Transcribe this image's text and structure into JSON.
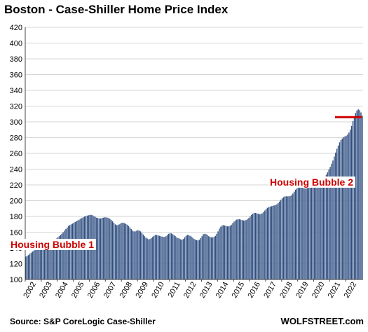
{
  "chart_data": {
    "type": "bar",
    "title": "Boston - Case-Shiller Home Price Index",
    "xlabel": "",
    "ylabel": "",
    "ylim": [
      100,
      420
    ],
    "yticks": [
      100,
      120,
      140,
      160,
      180,
      200,
      220,
      240,
      260,
      280,
      300,
      320,
      340,
      360,
      380,
      400,
      420
    ],
    "xticks": [
      "2002",
      "2003",
      "2004",
      "2005",
      "2006",
      "2007",
      "2008",
      "2009",
      "2010",
      "2011",
      "2012",
      "2013",
      "2014",
      "2015",
      "2016",
      "2017",
      "2018",
      "2019",
      "2020",
      "2021",
      "2022"
    ],
    "grid": true,
    "legend": "none",
    "x_start": "2002-01",
    "frequency": "monthly",
    "values": [
      129.0,
      130.0,
      131.0,
      132.5,
      134.0,
      135.5,
      136.5,
      137.5,
      138.5,
      139.5,
      140.5,
      141.0,
      141.5,
      142.0,
      142.5,
      143.5,
      145.0,
      146.0,
      147.0,
      148.0,
      149.0,
      150.0,
      151.0,
      152.0,
      153.5,
      155.0,
      156.5,
      158.0,
      160.0,
      162.0,
      164.0,
      166.0,
      168.0,
      169.0,
      170.0,
      171.0,
      172.0,
      173.0,
      174.0,
      175.0,
      176.0,
      177.0,
      178.0,
      179.0,
      180.0,
      180.5,
      181.0,
      181.5,
      182.0,
      182.0,
      181.5,
      180.5,
      179.5,
      178.5,
      178.0,
      177.5,
      177.5,
      178.0,
      178.5,
      179.0,
      179.0,
      178.5,
      178.0,
      177.0,
      175.5,
      174.0,
      172.0,
      170.0,
      169.0,
      169.0,
      170.0,
      171.0,
      172.0,
      172.0,
      171.5,
      170.5,
      169.5,
      168.0,
      166.0,
      164.0,
      162.0,
      161.0,
      161.0,
      162.0,
      162.5,
      162.0,
      161.0,
      159.0,
      157.0,
      155.0,
      153.0,
      152.0,
      151.0,
      151.5,
      152.5,
      154.0,
      155.5,
      156.5,
      156.5,
      156.0,
      155.5,
      155.0,
      154.5,
      154.0,
      154.0,
      155.0,
      156.5,
      158.0,
      159.0,
      158.5,
      157.5,
      156.5,
      155.0,
      153.5,
      152.5,
      152.0,
      151.0,
      150.5,
      151.5,
      153.5,
      155.5,
      156.5,
      156.5,
      155.5,
      154.5,
      153.0,
      151.5,
      150.5,
      150.0,
      149.5,
      150.5,
      152.5,
      155.0,
      157.5,
      158.0,
      157.5,
      156.5,
      155.0,
      154.0,
      153.5,
      153.5,
      154.0,
      155.5,
      158.0,
      161.0,
      164.5,
      167.0,
      168.5,
      169.0,
      168.5,
      168.0,
      167.5,
      167.5,
      168.0,
      169.5,
      171.5,
      173.5,
      175.0,
      176.0,
      176.5,
      176.5,
      176.0,
      175.5,
      175.0,
      175.0,
      175.5,
      176.5,
      178.0,
      180.0,
      182.0,
      183.5,
      184.5,
      184.5,
      184.0,
      183.5,
      183.0,
      183.0,
      184.0,
      185.5,
      187.5,
      189.5,
      191.0,
      192.0,
      192.5,
      193.0,
      193.5,
      194.0,
      194.5,
      195.5,
      197.0,
      199.0,
      201.0,
      203.0,
      204.5,
      205.5,
      205.5,
      205.5,
      205.5,
      206.0,
      207.0,
      209.0,
      211.5,
      214.0,
      215.5,
      216.5,
      217.0,
      217.0,
      216.5,
      216.0,
      215.5,
      215.5,
      216.0,
      217.0,
      218.5,
      220.0,
      221.5,
      222.0,
      222.5,
      222.5,
      222.5,
      223.0,
      224.0,
      226.0,
      228.0,
      230.0,
      233.0,
      236.0,
      239.5,
      243.0,
      247.0,
      251.0,
      256.0,
      261.0,
      266.0,
      270.0,
      274.0,
      277.0,
      279.0,
      280.5,
      281.5,
      282.5,
      284.0,
      286.5,
      290.0,
      295.0,
      301.0,
      307.0,
      311.5,
      314.5,
      316.0,
      315.0,
      312.0,
      308.0
    ],
    "annotations": [
      {
        "text": "Housing Bubble 1",
        "color": "#cc0000"
      },
      {
        "text": "Housing Bubble 2",
        "color": "#cc0000"
      }
    ],
    "reference_line": {
      "y": 306,
      "x_from": "2021-05",
      "x_to": "2022-12",
      "color": "#cc0000"
    },
    "bar_color": "#2f4d7e",
    "bar_edge_color": "#c9d4e6",
    "grid_color": "#d6d6d6"
  },
  "source": "Source: S&P CoreLogic Case-Shiller",
  "brand": "WOLFSTREET.com"
}
